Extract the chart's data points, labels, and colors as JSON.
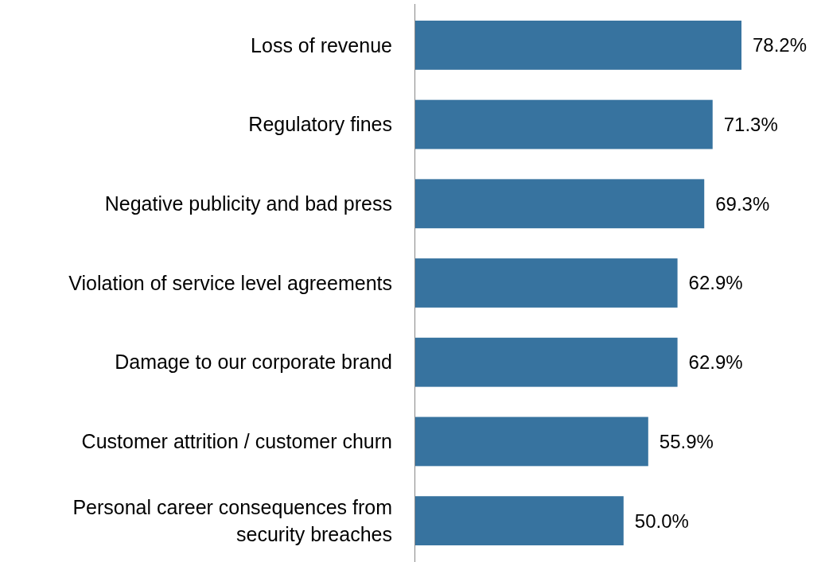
{
  "chart_data": {
    "type": "bar",
    "orientation": "horizontal",
    "categories": [
      "Loss of revenue",
      "Regulatory fines",
      "Negative publicity and bad press",
      "Violation of service level agreements",
      "Damage to our corporate brand",
      "Customer attrition / customer churn",
      "Personal career consequences from security breaches"
    ],
    "values": [
      78.2,
      71.3,
      69.3,
      62.9,
      62.9,
      55.9,
      50.0
    ],
    "value_labels": [
      "78.2%",
      "71.3%",
      "69.3%",
      "62.9%",
      "62.9%",
      "55.9%",
      "50.0%"
    ],
    "color": "#37739f"
  }
}
